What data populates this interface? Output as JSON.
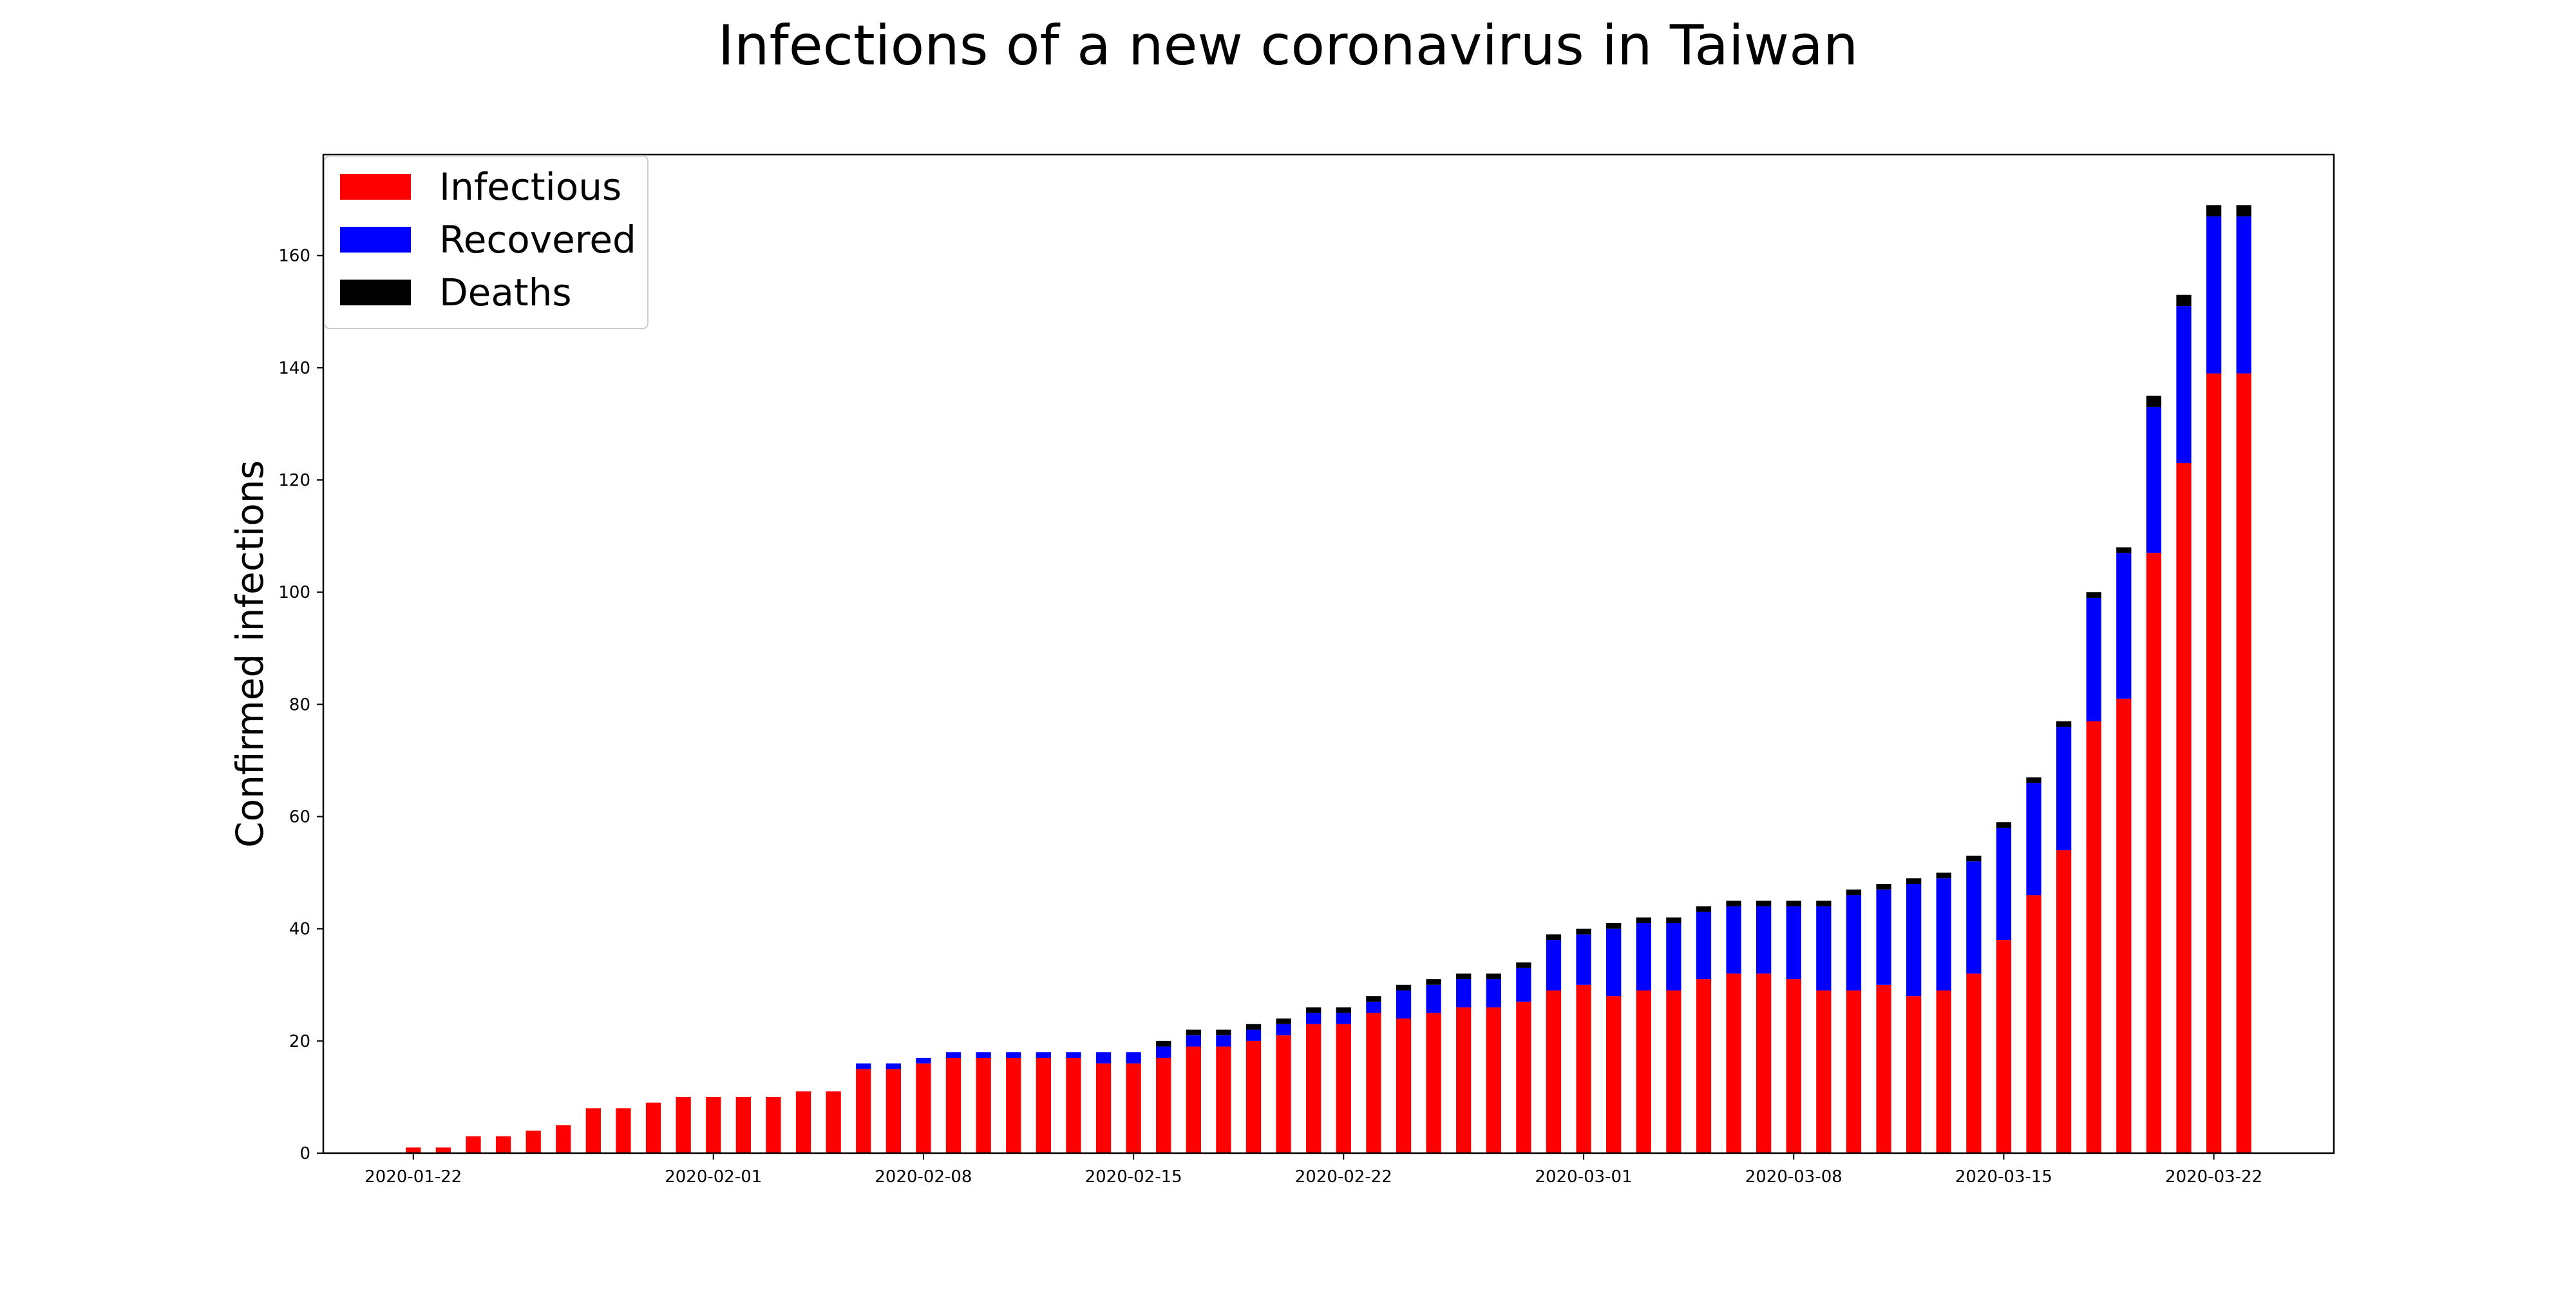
{
  "chart_data": {
    "type": "bar",
    "stacked": true,
    "title": "Infections of a new coronavirus in Taiwan",
    "xlabel": "",
    "ylabel": "Confirmed infections",
    "ylim": [
      0,
      178
    ],
    "xlim": [
      "2020-01-19",
      "2020-03-26"
    ],
    "yticks": [
      0,
      20,
      40,
      60,
      80,
      100,
      120,
      140,
      160
    ],
    "xticks": [
      "2020-01-22",
      "2020-02-01",
      "2020-02-08",
      "2020-02-15",
      "2020-02-22",
      "2020-03-01",
      "2020-03-08",
      "2020-03-15",
      "2020-03-22"
    ],
    "grid": false,
    "legend_position": "top-left",
    "categories": [
      "2020-01-22",
      "2020-01-23",
      "2020-01-24",
      "2020-01-25",
      "2020-01-26",
      "2020-01-27",
      "2020-01-28",
      "2020-01-29",
      "2020-01-30",
      "2020-01-31",
      "2020-02-01",
      "2020-02-02",
      "2020-02-03",
      "2020-02-04",
      "2020-02-05",
      "2020-02-06",
      "2020-02-07",
      "2020-02-08",
      "2020-02-09",
      "2020-02-10",
      "2020-02-11",
      "2020-02-12",
      "2020-02-13",
      "2020-02-14",
      "2020-02-15",
      "2020-02-16",
      "2020-02-17",
      "2020-02-18",
      "2020-02-19",
      "2020-02-20",
      "2020-02-21",
      "2020-02-22",
      "2020-02-23",
      "2020-02-24",
      "2020-02-25",
      "2020-02-26",
      "2020-02-27",
      "2020-02-28",
      "2020-02-29",
      "2020-03-01",
      "2020-03-02",
      "2020-03-03",
      "2020-03-04",
      "2020-03-05",
      "2020-03-06",
      "2020-03-07",
      "2020-03-08",
      "2020-03-09",
      "2020-03-10",
      "2020-03-11",
      "2020-03-12",
      "2020-03-13",
      "2020-03-14",
      "2020-03-15",
      "2020-03-16",
      "2020-03-17",
      "2020-03-18",
      "2020-03-19",
      "2020-03-20",
      "2020-03-21",
      "2020-03-22",
      "2020-03-23"
    ],
    "series": [
      {
        "name": "Infectious",
        "color": "#ff0000",
        "values": [
          1,
          1,
          3,
          3,
          4,
          5,
          8,
          8,
          9,
          10,
          10,
          10,
          10,
          11,
          11,
          15,
          15,
          16,
          17,
          17,
          17,
          17,
          17,
          16,
          16,
          17,
          19,
          19,
          20,
          21,
          23,
          23,
          25,
          24,
          25,
          26,
          26,
          27,
          29,
          30,
          28,
          29,
          29,
          31,
          32,
          32,
          31,
          29,
          29,
          30,
          28,
          29,
          32,
          38,
          46,
          54,
          77,
          81,
          107,
          123,
          139,
          139
        ]
      },
      {
        "name": "Recovered",
        "color": "#0000ff",
        "values": [
          0,
          0,
          0,
          0,
          0,
          0,
          0,
          0,
          0,
          0,
          0,
          0,
          0,
          0,
          0,
          1,
          1,
          1,
          1,
          1,
          1,
          1,
          1,
          2,
          2,
          2,
          2,
          2,
          2,
          2,
          2,
          2,
          2,
          5,
          5,
          5,
          5,
          6,
          9,
          9,
          12,
          12,
          12,
          12,
          12,
          12,
          13,
          15,
          17,
          17,
          20,
          20,
          20,
          20,
          20,
          22,
          22,
          26,
          26,
          28,
          28,
          28
        ]
      },
      {
        "name": "Deaths",
        "color": "#000000",
        "values": [
          0,
          0,
          0,
          0,
          0,
          0,
          0,
          0,
          0,
          0,
          0,
          0,
          0,
          0,
          0,
          0,
          0,
          0,
          0,
          0,
          0,
          0,
          0,
          0,
          0,
          1,
          1,
          1,
          1,
          1,
          1,
          1,
          1,
          1,
          1,
          1,
          1,
          1,
          1,
          1,
          1,
          1,
          1,
          1,
          1,
          1,
          1,
          1,
          1,
          1,
          1,
          1,
          1,
          1,
          1,
          1,
          1,
          1,
          2,
          2,
          2,
          2
        ]
      }
    ]
  }
}
